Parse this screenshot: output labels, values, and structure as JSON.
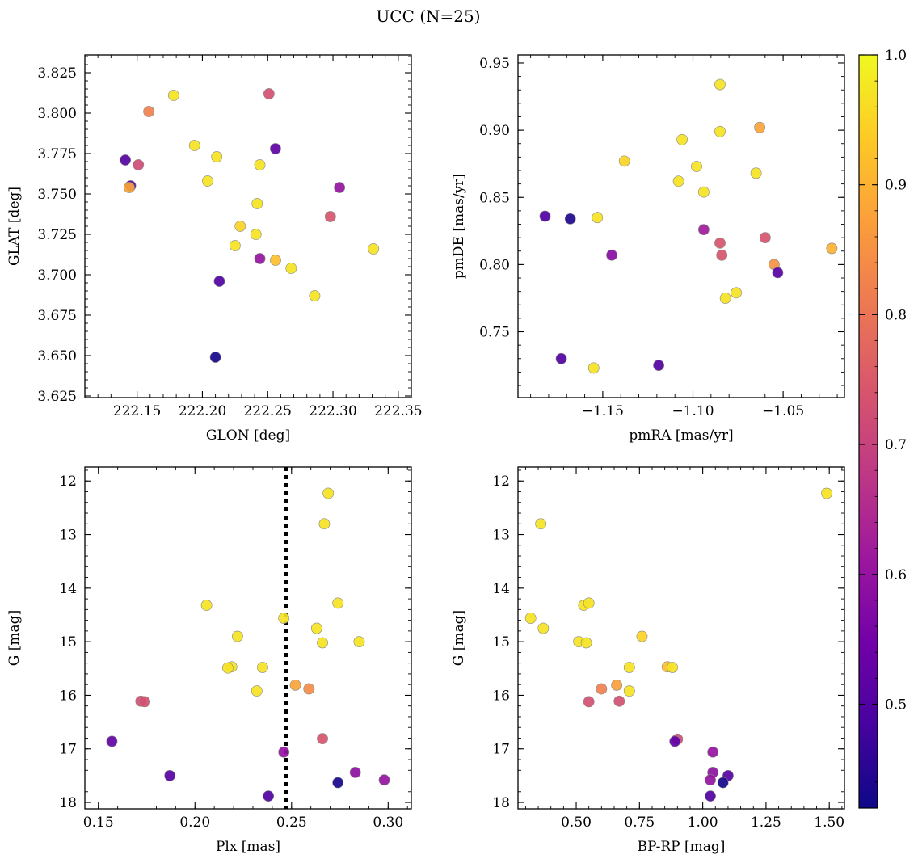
{
  "figure": {
    "title": "UCC (N=25)",
    "colormap": "plasma",
    "colorbar": {
      "range": [
        0.42,
        1.0
      ],
      "ticks": [
        "0.5",
        "0.6",
        "0.7",
        "0.8",
        "0.9",
        "1.0"
      ],
      "tick_values": [
        0.5,
        0.6,
        0.7,
        0.8,
        0.9,
        1.0
      ]
    }
  },
  "chart_data": [
    {
      "type": "scatter",
      "title": "",
      "xlabel": "GLON [deg]",
      "ylabel": "GLAT [deg]",
      "xlim": [
        222.11,
        222.36
      ],
      "ylim": [
        3.624,
        3.836
      ],
      "xticks": [
        222.15,
        222.2,
        222.25,
        222.3,
        222.35
      ],
      "xtick_labels": [
        "222.15",
        "222.20",
        "222.25",
        "222.30",
        "222.35"
      ],
      "yticks": [
        3.625,
        3.65,
        3.675,
        3.7,
        3.725,
        3.75,
        3.775,
        3.8,
        3.825
      ],
      "ytick_labels": [
        "3.625",
        "3.650",
        "3.675",
        "3.700",
        "3.725",
        "3.750",
        "3.775",
        "3.800",
        "3.825"
      ],
      "reverse_y": false,
      "points": [
        {
          "x": 222.178,
          "y": 3.811,
          "c": 0.97
        },
        {
          "x": 222.251,
          "y": 3.812,
          "c": 0.73
        },
        {
          "x": 222.159,
          "y": 3.801,
          "c": 0.82
        },
        {
          "x": 222.194,
          "y": 3.78,
          "c": 0.97
        },
        {
          "x": 222.256,
          "y": 3.778,
          "c": 0.52
        },
        {
          "x": 222.211,
          "y": 3.773,
          "c": 0.97
        },
        {
          "x": 222.141,
          "y": 3.771,
          "c": 0.51
        },
        {
          "x": 222.151,
          "y": 3.768,
          "c": 0.72
        },
        {
          "x": 222.244,
          "y": 3.768,
          "c": 0.97
        },
        {
          "x": 222.204,
          "y": 3.758,
          "c": 0.97
        },
        {
          "x": 222.145,
          "y": 3.755,
          "c": 0.5
        },
        {
          "x": 222.144,
          "y": 3.754,
          "c": 0.88
        },
        {
          "x": 222.305,
          "y": 3.754,
          "c": 0.6
        },
        {
          "x": 222.242,
          "y": 3.744,
          "c": 0.97
        },
        {
          "x": 222.298,
          "y": 3.736,
          "c": 0.74
        },
        {
          "x": 222.229,
          "y": 3.73,
          "c": 0.95
        },
        {
          "x": 222.241,
          "y": 3.725,
          "c": 0.97
        },
        {
          "x": 222.225,
          "y": 3.718,
          "c": 0.97
        },
        {
          "x": 222.331,
          "y": 3.716,
          "c": 0.97
        },
        {
          "x": 222.244,
          "y": 3.71,
          "c": 0.6
        },
        {
          "x": 222.256,
          "y": 3.709,
          "c": 0.92
        },
        {
          "x": 222.268,
          "y": 3.704,
          "c": 0.97
        },
        {
          "x": 222.213,
          "y": 3.696,
          "c": 0.5
        },
        {
          "x": 222.286,
          "y": 3.687,
          "c": 0.97
        },
        {
          "x": 222.21,
          "y": 3.649,
          "c": 0.43
        }
      ]
    },
    {
      "type": "scatter",
      "title": "",
      "xlabel": "pmRA [mas/yr]",
      "ylabel": "pmDE [mas/yr]",
      "xlim": [
        -1.197,
        -1.016
      ],
      "ylim": [
        0.701,
        0.956
      ],
      "xticks": [
        -1.15,
        -1.1,
        -1.05
      ],
      "xtick_labels": [
        "−1.15",
        "−1.10",
        "−1.05"
      ],
      "yticks": [
        0.75,
        0.8,
        0.85,
        0.9,
        0.95
      ],
      "ytick_labels": [
        "0.75",
        "0.80",
        "0.85",
        "0.90",
        "0.95"
      ],
      "reverse_y": false,
      "points": [
        {
          "x": -1.085,
          "y": 0.934,
          "c": 0.97
        },
        {
          "x": -1.063,
          "y": 0.902,
          "c": 0.88
        },
        {
          "x": -1.085,
          "y": 0.899,
          "c": 0.97
        },
        {
          "x": -1.106,
          "y": 0.893,
          "c": 0.97
        },
        {
          "x": -1.138,
          "y": 0.877,
          "c": 0.95
        },
        {
          "x": -1.098,
          "y": 0.873,
          "c": 0.97
        },
        {
          "x": -1.065,
          "y": 0.868,
          "c": 0.97
        },
        {
          "x": -1.108,
          "y": 0.862,
          "c": 0.97
        },
        {
          "x": -1.094,
          "y": 0.854,
          "c": 0.97
        },
        {
          "x": -1.182,
          "y": 0.836,
          "c": 0.5
        },
        {
          "x": -1.168,
          "y": 0.834,
          "c": 0.44
        },
        {
          "x": -1.153,
          "y": 0.835,
          "c": 0.97
        },
        {
          "x": -1.094,
          "y": 0.826,
          "c": 0.62
        },
        {
          "x": -1.06,
          "y": 0.82,
          "c": 0.74
        },
        {
          "x": -1.085,
          "y": 0.816,
          "c": 0.74
        },
        {
          "x": -1.023,
          "y": 0.812,
          "c": 0.9
        },
        {
          "x": -1.145,
          "y": 0.807,
          "c": 0.58
        },
        {
          "x": -1.084,
          "y": 0.807,
          "c": 0.74
        },
        {
          "x": -1.055,
          "y": 0.8,
          "c": 0.85
        },
        {
          "x": -1.053,
          "y": 0.794,
          "c": 0.51
        },
        {
          "x": -1.076,
          "y": 0.779,
          "c": 0.97
        },
        {
          "x": -1.082,
          "y": 0.775,
          "c": 0.97
        },
        {
          "x": -1.173,
          "y": 0.73,
          "c": 0.5
        },
        {
          "x": -1.119,
          "y": 0.725,
          "c": 0.5
        },
        {
          "x": -1.155,
          "y": 0.723,
          "c": 0.97
        }
      ]
    },
    {
      "type": "scatter",
      "title": "",
      "xlabel": "Plx [mas]",
      "ylabel": "G [mag]",
      "xlim": [
        0.143,
        0.312
      ],
      "ylim": [
        18.12,
        11.74
      ],
      "xticks": [
        0.15,
        0.2,
        0.25,
        0.3
      ],
      "xtick_labels": [
        "0.15",
        "0.20",
        "0.25",
        "0.30"
      ],
      "yticks": [
        12,
        13,
        14,
        15,
        16,
        17,
        18
      ],
      "ytick_labels": [
        "12",
        "13",
        "14",
        "15",
        "16",
        "17",
        "18"
      ],
      "reverse_y": true,
      "vline": 0.247,
      "points": [
        {
          "x": 0.269,
          "y": 12.23,
          "c": 0.97
        },
        {
          "x": 0.267,
          "y": 12.8,
          "c": 0.97
        },
        {
          "x": 0.206,
          "y": 14.32,
          "c": 0.97
        },
        {
          "x": 0.274,
          "y": 14.28,
          "c": 0.97
        },
        {
          "x": 0.246,
          "y": 14.56,
          "c": 0.97
        },
        {
          "x": 0.263,
          "y": 14.75,
          "c": 0.97
        },
        {
          "x": 0.222,
          "y": 14.9,
          "c": 0.97
        },
        {
          "x": 0.266,
          "y": 15.02,
          "c": 0.97
        },
        {
          "x": 0.285,
          "y": 15.0,
          "c": 0.97
        },
        {
          "x": 0.219,
          "y": 15.47,
          "c": 0.97
        },
        {
          "x": 0.217,
          "y": 15.49,
          "c": 0.97
        },
        {
          "x": 0.235,
          "y": 15.48,
          "c": 0.97
        },
        {
          "x": 0.232,
          "y": 15.92,
          "c": 0.97
        },
        {
          "x": 0.252,
          "y": 15.81,
          "c": 0.88
        },
        {
          "x": 0.259,
          "y": 15.88,
          "c": 0.84
        },
        {
          "x": 0.172,
          "y": 16.11,
          "c": 0.73
        },
        {
          "x": 0.174,
          "y": 16.12,
          "c": 0.73
        },
        {
          "x": 0.157,
          "y": 16.86,
          "c": 0.52
        },
        {
          "x": 0.266,
          "y": 16.81,
          "c": 0.74
        },
        {
          "x": 0.246,
          "y": 17.06,
          "c": 0.6
        },
        {
          "x": 0.187,
          "y": 17.5,
          "c": 0.51
        },
        {
          "x": 0.283,
          "y": 17.44,
          "c": 0.59
        },
        {
          "x": 0.298,
          "y": 17.58,
          "c": 0.6
        },
        {
          "x": 0.274,
          "y": 17.63,
          "c": 0.43
        },
        {
          "x": 0.238,
          "y": 17.88,
          "c": 0.5
        }
      ]
    },
    {
      "type": "scatter",
      "title": "",
      "xlabel": "BP-RP [mag]",
      "ylabel": "G [mag]",
      "xlim": [
        0.27,
        1.56
      ],
      "ylim": [
        18.12,
        11.74
      ],
      "xticks": [
        0.5,
        0.75,
        1.0,
        1.25,
        1.5
      ],
      "xtick_labels": [
        "0.50",
        "0.75",
        "1.00",
        "1.25",
        "1.50"
      ],
      "yticks": [
        12,
        13,
        14,
        15,
        16,
        17,
        18
      ],
      "ytick_labels": [
        "12",
        "13",
        "14",
        "15",
        "16",
        "17",
        "18"
      ],
      "reverse_y": true,
      "points": [
        {
          "x": 1.49,
          "y": 12.23,
          "c": 0.97
        },
        {
          "x": 0.36,
          "y": 12.8,
          "c": 0.97
        },
        {
          "x": 0.53,
          "y": 14.32,
          "c": 0.97
        },
        {
          "x": 0.55,
          "y": 14.28,
          "c": 0.97
        },
        {
          "x": 0.32,
          "y": 14.56,
          "c": 0.97
        },
        {
          "x": 0.37,
          "y": 14.75,
          "c": 0.97
        },
        {
          "x": 0.76,
          "y": 14.9,
          "c": 0.95
        },
        {
          "x": 0.51,
          "y": 15.0,
          "c": 0.97
        },
        {
          "x": 0.54,
          "y": 15.02,
          "c": 0.97
        },
        {
          "x": 0.71,
          "y": 15.48,
          "c": 0.97
        },
        {
          "x": 0.86,
          "y": 15.47,
          "c": 0.92
        },
        {
          "x": 0.88,
          "y": 15.48,
          "c": 0.97
        },
        {
          "x": 0.71,
          "y": 15.92,
          "c": 0.97
        },
        {
          "x": 0.6,
          "y": 15.88,
          "c": 0.82
        },
        {
          "x": 0.66,
          "y": 15.81,
          "c": 0.87
        },
        {
          "x": 0.55,
          "y": 16.12,
          "c": 0.73
        },
        {
          "x": 0.67,
          "y": 16.11,
          "c": 0.73
        },
        {
          "x": 0.9,
          "y": 16.82,
          "c": 0.72
        },
        {
          "x": 0.89,
          "y": 16.86,
          "c": 0.52
        },
        {
          "x": 1.04,
          "y": 17.06,
          "c": 0.6
        },
        {
          "x": 1.1,
          "y": 17.5,
          "c": 0.51
        },
        {
          "x": 1.04,
          "y": 17.44,
          "c": 0.59
        },
        {
          "x": 1.03,
          "y": 17.58,
          "c": 0.6
        },
        {
          "x": 1.08,
          "y": 17.63,
          "c": 0.43
        },
        {
          "x": 1.03,
          "y": 17.88,
          "c": 0.5
        }
      ]
    }
  ]
}
